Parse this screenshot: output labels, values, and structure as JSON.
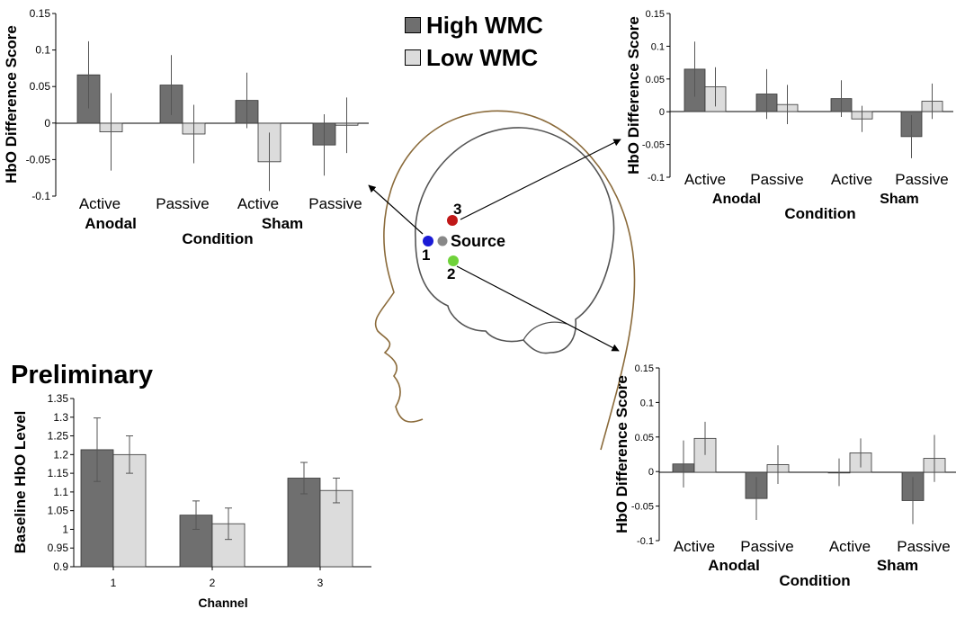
{
  "legend": {
    "high": {
      "label": "High WMC",
      "color": "#6f6f6f"
    },
    "low": {
      "label": "Low WMC",
      "color": "#dcdcdc"
    }
  },
  "preliminary_label": "Preliminary",
  "source_label": "Source",
  "channel_numbers": [
    "1",
    "2",
    "3"
  ],
  "chart_data": [
    {
      "id": "channel1",
      "type": "bar",
      "ylabel": "HbO Difference Score",
      "xlabel": "Condition",
      "ylim": [
        -0.1,
        0.15
      ],
      "yticks": [
        "0.15",
        "0.1",
        "0.05",
        "0",
        "-0.05",
        "-0.1"
      ],
      "categories": [
        "Active",
        "Passive",
        "Active",
        "Passive"
      ],
      "groups": [
        "Anodal",
        "Sham"
      ],
      "series": [
        {
          "name": "High WMC",
          "values": [
            0.066,
            0.052,
            0.031,
            -0.03
          ],
          "errors": [
            0.046,
            0.041,
            0.038,
            0.042
          ]
        },
        {
          "name": "Low WMC",
          "values": [
            -0.012,
            -0.015,
            -0.053,
            -0.003
          ],
          "errors": [
            0.053,
            0.04,
            0.04,
            0.038
          ]
        }
      ]
    },
    {
      "id": "channel3",
      "type": "bar",
      "ylabel": "HbO Difference Score",
      "xlabel": "Condition",
      "ylim": [
        -0.1,
        0.15
      ],
      "yticks": [
        "0.15",
        "0.1",
        "0.05",
        "0",
        "-0.05",
        "-0.1"
      ],
      "categories": [
        "Active",
        "Passive",
        "Active",
        "Passive"
      ],
      "groups": [
        "Anodal",
        "Sham"
      ],
      "series": [
        {
          "name": "High WMC",
          "values": [
            0.065,
            0.027,
            0.02,
            -0.038
          ],
          "errors": [
            0.042,
            0.038,
            0.028,
            0.033
          ]
        },
        {
          "name": "Low WMC",
          "values": [
            0.038,
            0.011,
            -0.011,
            0.016
          ],
          "errors": [
            0.03,
            0.03,
            0.02,
            0.027
          ]
        }
      ]
    },
    {
      "id": "channel2",
      "type": "bar",
      "ylabel": "HbO Difference Score",
      "xlabel": "Condition",
      "ylim": [
        -0.1,
        0.15
      ],
      "yticks": [
        "0.15",
        "0.1",
        "0.05",
        "0",
        "-0.05",
        "-0.1"
      ],
      "categories": [
        "Active",
        "Passive",
        "Active",
        "Passive"
      ],
      "groups": [
        "Anodal",
        "Sham"
      ],
      "series": [
        {
          "name": "High WMC",
          "values": [
            0.011,
            -0.039,
            -0.001,
            -0.042
          ],
          "errors": [
            0.034,
            0.031,
            0.02,
            0.034
          ]
        },
        {
          "name": "Low WMC",
          "values": [
            0.048,
            0.01,
            0.027,
            0.019
          ],
          "errors": [
            0.024,
            0.028,
            0.021,
            0.034
          ]
        }
      ]
    },
    {
      "id": "baseline",
      "type": "bar",
      "ylabel": "Baseline HbO Level",
      "xlabel": "Channel",
      "ylim": [
        0.9,
        1.35
      ],
      "yticks": [
        "1.35",
        "1.3",
        "1.25",
        "1.2",
        "1.15",
        "1.1",
        "1.05",
        "1",
        "0.95",
        "0.9"
      ],
      "categories": [
        "1",
        "2",
        "3"
      ],
      "series": [
        {
          "name": "High WMC",
          "values": [
            1.213,
            1.038,
            1.137
          ],
          "errors": [
            0.085,
            0.038,
            0.042
          ]
        },
        {
          "name": "Low WMC",
          "values": [
            1.2,
            1.015,
            1.104
          ],
          "errors": [
            0.05,
            0.042,
            0.033
          ]
        }
      ]
    }
  ]
}
